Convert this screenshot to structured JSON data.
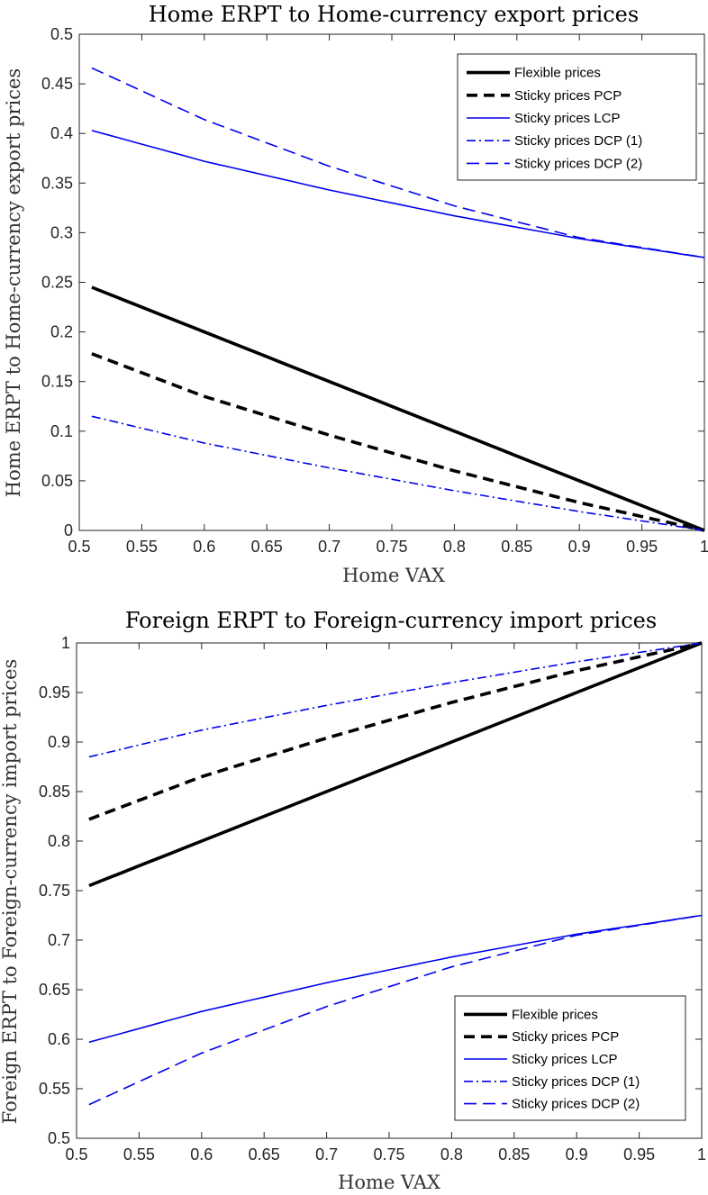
{
  "chart_data": [
    {
      "type": "line",
      "title": "Home ERPT to Home-currency export prices",
      "xlabel": "Home VAX",
      "ylabel": "Home ERPT to Home-currency export prices",
      "xlim": [
        0.5,
        1
      ],
      "ylim": [
        0,
        0.5
      ],
      "xticks": [
        0.5,
        0.55,
        0.6,
        0.65,
        0.7,
        0.75,
        0.8,
        0.85,
        0.9,
        0.95,
        1
      ],
      "xtick_labels": [
        "0.5",
        "0.55",
        "0.6",
        "0.65",
        "0.7",
        "0.75",
        "0.8",
        "0.85",
        "0.9",
        "0.95",
        "1"
      ],
      "yticks": [
        0,
        0.05,
        0.1,
        0.15,
        0.2,
        0.25,
        0.3,
        0.35,
        0.4,
        0.45,
        0.5
      ],
      "ytick_labels": [
        "0",
        "0.05",
        "0.1",
        "0.15",
        "0.2",
        "0.25",
        "0.3",
        "0.35",
        "0.4",
        "0.45",
        "0.5"
      ],
      "grid": false,
      "legend_position": "top-right",
      "x": [
        0.51,
        0.6,
        0.7,
        0.8,
        0.9,
        1.0
      ],
      "series": [
        {
          "name": "Flexible prices",
          "color": "#000000",
          "style": "solid-thick",
          "values": [
            0.245,
            0.2,
            0.15,
            0.1,
            0.05,
            0.0
          ]
        },
        {
          "name": "Sticky prices PCP",
          "color": "#000000",
          "style": "dashed-thick",
          "values": [
            0.178,
            0.135,
            0.096,
            0.06,
            0.028,
            0.0
          ]
        },
        {
          "name": "Sticky prices LCP",
          "color": "#0000ee",
          "style": "solid",
          "values": [
            0.403,
            0.372,
            0.343,
            0.317,
            0.294,
            0.275
          ]
        },
        {
          "name": "Sticky prices DCP (1)",
          "color": "#0000ee",
          "style": "dashdot",
          "values": [
            0.115,
            0.088,
            0.063,
            0.04,
            0.019,
            0.0
          ]
        },
        {
          "name": "Sticky prices DCP (2)",
          "color": "#0000ee",
          "style": "dashed",
          "values": [
            0.466,
            0.414,
            0.367,
            0.327,
            0.295,
            0.275
          ]
        }
      ]
    },
    {
      "type": "line",
      "title": "Foreign ERPT to Foreign-currency import prices",
      "xlabel": "Home VAX",
      "ylabel": "Foreign ERPT to Foreign-currency import prices",
      "xlim": [
        0.5,
        1
      ],
      "ylim": [
        0.5,
        1
      ],
      "xticks": [
        0.5,
        0.55,
        0.6,
        0.65,
        0.7,
        0.75,
        0.8,
        0.85,
        0.9,
        0.95,
        1
      ],
      "xtick_labels": [
        "0.5",
        "0.55",
        "0.6",
        "0.65",
        "0.7",
        "0.75",
        "0.8",
        "0.85",
        "0.9",
        "0.95",
        "1"
      ],
      "yticks": [
        0.5,
        0.55,
        0.6,
        0.65,
        0.7,
        0.75,
        0.8,
        0.85,
        0.9,
        0.95,
        1
      ],
      "ytick_labels": [
        "0.5",
        "0.55",
        "0.6",
        "0.65",
        "0.7",
        "0.75",
        "0.8",
        "0.85",
        "0.9",
        "0.95",
        "1"
      ],
      "grid": false,
      "legend_position": "bottom-right",
      "x": [
        0.51,
        0.6,
        0.7,
        0.8,
        0.9,
        1.0
      ],
      "series": [
        {
          "name": "Flexible prices",
          "color": "#000000",
          "style": "solid-thick",
          "values": [
            0.755,
            0.8,
            0.85,
            0.9,
            0.95,
            1.0
          ]
        },
        {
          "name": "Sticky prices PCP",
          "color": "#000000",
          "style": "dashed-thick",
          "values": [
            0.822,
            0.865,
            0.904,
            0.94,
            0.972,
            1.0
          ]
        },
        {
          "name": "Sticky prices LCP",
          "color": "#0000ee",
          "style": "solid",
          "values": [
            0.597,
            0.628,
            0.657,
            0.683,
            0.706,
            0.725
          ]
        },
        {
          "name": "Sticky prices DCP (1)",
          "color": "#0000ee",
          "style": "dashdot",
          "values": [
            0.885,
            0.912,
            0.937,
            0.96,
            0.981,
            1.0
          ]
        },
        {
          "name": "Sticky prices DCP (2)",
          "color": "#0000ee",
          "style": "dashed",
          "values": [
            0.534,
            0.586,
            0.633,
            0.673,
            0.705,
            0.725
          ]
        }
      ]
    }
  ]
}
